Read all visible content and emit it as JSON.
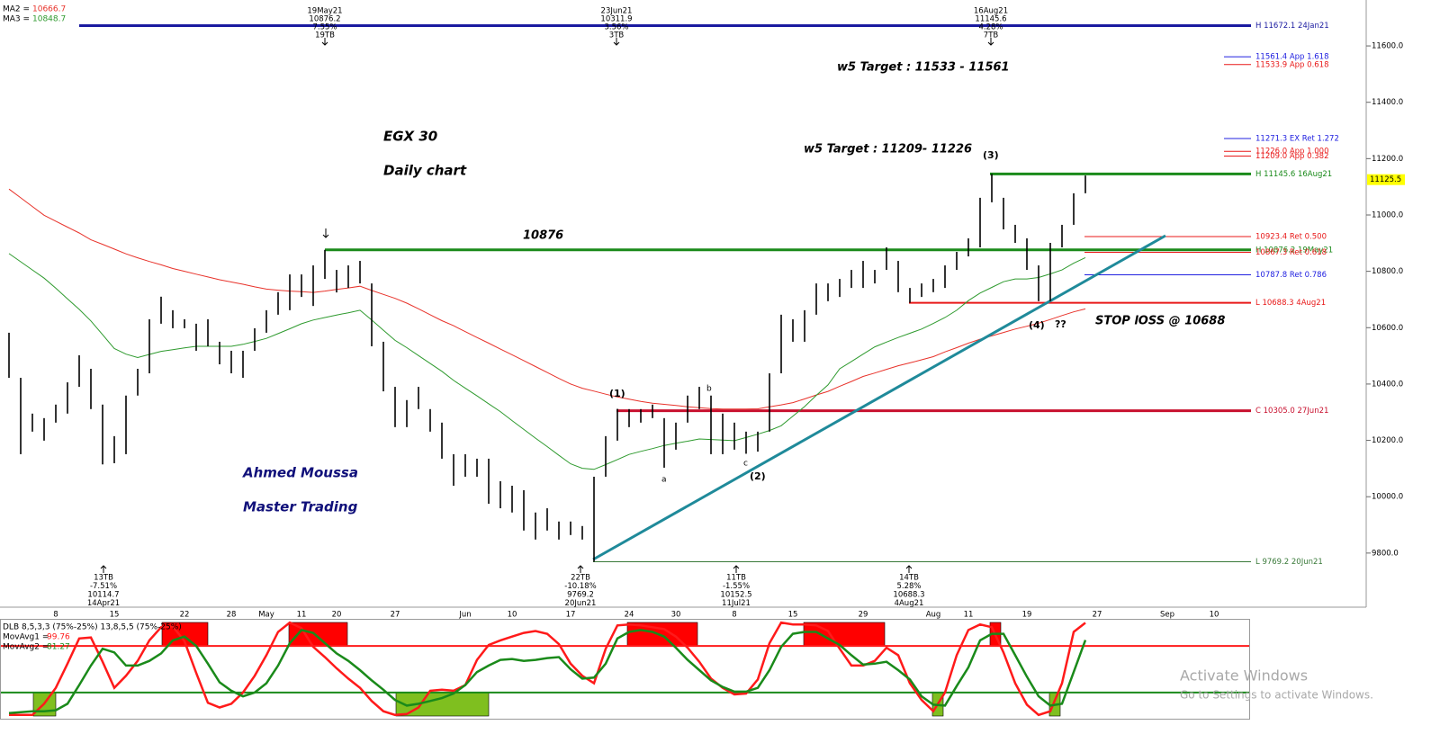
{
  "chart_data": {
    "type": "ohlc",
    "categories": [
      null,
      null,
      null,
      null,
      "8",
      null,
      null,
      null,
      null,
      "15",
      null,
      null,
      null,
      null,
      null,
      "22",
      null,
      null,
      null,
      "28",
      null,
      null,
      "May",
      null,
      null,
      "11",
      null,
      null,
      "20",
      null,
      null,
      null,
      null,
      "27",
      null,
      null,
      null,
      null,
      null,
      "Jun",
      null,
      null,
      null,
      "10",
      null,
      null,
      null,
      null,
      "17",
      null,
      null,
      null,
      null,
      "24",
      null,
      null,
      null,
      "30",
      null,
      null,
      null,
      null,
      "8",
      null,
      null,
      null,
      null,
      "15",
      null,
      null,
      null,
      null,
      null,
      "29",
      null,
      null,
      null,
      null,
      null,
      "Aug",
      null,
      null,
      "11",
      null,
      null,
      null,
      null,
      "19",
      null,
      null,
      null,
      null,
      null,
      "27",
      null,
      null,
      null,
      null,
      null,
      "Sep",
      null,
      null,
      null,
      "10",
      null
    ],
    "high": [
      10582,
      10422,
      10295,
      10279,
      10327,
      10406,
      10502,
      10454,
      10327,
      10215,
      10359,
      10454,
      10630,
      10710,
      10662,
      10630,
      10614,
      10630,
      10550,
      10518,
      10518,
      10598,
      10662,
      10726,
      10789,
      10789,
      10821,
      10876.2,
      10805,
      10821,
      10837,
      10757,
      10550,
      10390,
      10343,
      10390,
      10311,
      10263,
      10151,
      10151,
      10135,
      10135,
      10055,
      10039,
      10023,
      9944,
      9959,
      9912,
      9912,
      9896,
      10071,
      10215,
      10311.9,
      10311,
      10311,
      10327,
      10279,
      10263,
      10359,
      10390,
      10359,
      10295,
      10263,
      10231,
      10231,
      10438,
      10646,
      10630,
      10662,
      10757,
      10757,
      10773,
      10805,
      10837,
      10805,
      10885,
      10837,
      10741,
      10757,
      10773,
      10821,
      10869,
      10917,
      11061,
      11145.6,
      11061,
      10965,
      10917,
      10821,
      10901,
      10965,
      11077,
      11140,
      null,
      null,
      null,
      null,
      null,
      null,
      null,
      null,
      null,
      null,
      null,
      null
    ],
    "low": [
      10422,
      10151,
      10231,
      10199,
      10263,
      10295,
      10390,
      10311,
      10114.7,
      10119,
      10151,
      10359,
      10438,
      10614,
      10598,
      10598,
      10518,
      10534,
      10470,
      10438,
      10422,
      10518,
      10582,
      10646,
      10662,
      10709,
      10677,
      10773,
      10725,
      10741,
      10757,
      10534,
      10374,
      10247,
      10247,
      10311,
      10231,
      10135,
      10039,
      10071,
      10071,
      9975,
      9959,
      9944,
      9880,
      9848,
      9880,
      9848,
      9864,
      9848,
      9769.2,
      10071,
      10199,
      10247,
      10263,
      10279,
      10103,
      10167,
      10263,
      10311,
      10151,
      10151,
      10167,
      10152.5,
      10160,
      10231,
      10438,
      10550,
      10550,
      10646,
      10694,
      10709,
      10741,
      10741,
      10757,
      10805,
      10726,
      10688.3,
      10709,
      10726,
      10741,
      10805,
      10853,
      10885,
      11045,
      10949,
      10901,
      10805,
      10694,
      10694,
      10885,
      10965,
      11077,
      null,
      null,
      null,
      null,
      null,
      null,
      null,
      null,
      null,
      null,
      null,
      null
    ],
    "bar_color": "#000000",
    "ylim": [
      9608,
      11763
    ],
    "yticks": [
      {
        "value": 9800,
        "label": "9800.0"
      },
      {
        "value": 10000,
        "label": "10000.0"
      },
      {
        "value": 10200,
        "label": "10200.0"
      },
      {
        "value": 10400,
        "label": "10400.0"
      },
      {
        "value": 10600,
        "label": "10600.0"
      },
      {
        "value": 10800,
        "label": "10800.0"
      },
      {
        "value": 11000,
        "label": "11000.0"
      },
      {
        "value": 11200,
        "label": "11200.0"
      },
      {
        "value": 11400,
        "label": "11400.0"
      },
      {
        "value": 11600,
        "label": "11600.0"
      }
    ],
    "last_price": 11125.5,
    "last_price_color": "#ffff00",
    "moving_averages": [
      {
        "label": "MA2 =",
        "color": "#e8322a",
        "values": [
          11092,
          11061,
          11030,
          10999,
          10978,
          10957,
          10936,
          10912,
          10896,
          10879,
          10862,
          10848,
          10835,
          10823,
          10810,
          10800,
          10790,
          10780,
          10770,
          10762,
          10754,
          10745,
          10737,
          10733,
          10730,
          10728,
          10725,
          10730,
          10736,
          10741,
          10747,
          10732,
          10718,
          10704,
          10687,
          10667,
          10646,
          10625,
          10607,
          10586,
          10565,
          10545,
          10524,
          10504,
          10483,
          10462,
          10441,
          10420,
          10400,
          10385,
          10375,
          10364,
          10354,
          10346,
          10338,
          10332,
          10328,
          10324,
          10319,
          10316,
          10313,
          10311,
          10311,
          10311,
          10312,
          10319,
          10326,
          10334,
          10347,
          10361,
          10374,
          10392,
          10409,
          10427,
          10439,
          10452,
          10465,
          10475,
          10486,
          10497,
          10514,
          10529,
          10545,
          10559,
          10571,
          10583,
          10595,
          10605,
          10616,
          10629,
          10643,
          10656,
          10666.7,
          null,
          null,
          null,
          null,
          null,
          null,
          null,
          null,
          null,
          null,
          null,
          null
        ]
      },
      {
        "label": "MA3 =",
        "color": "#2e9a2e",
        "values": [
          10863,
          10834,
          10805,
          10776,
          10740,
          10702,
          10665,
          10624,
          10575,
          10526,
          10506,
          10494,
          10505,
          10516,
          10522,
          10528,
          10534,
          10534,
          10534,
          10534,
          10541,
          10551,
          10562,
          10579,
          10596,
          10614,
          10627,
          10636,
          10645,
          10653,
          10662,
          10627,
          10591,
          10555,
          10529,
          10501,
          10473,
          10445,
          10413,
          10385,
          10358,
          10330,
          10302,
          10270,
          10239,
          10208,
          10178,
          10147,
          10117,
          10101,
          10097,
          10114,
          10132,
          10150,
          10161,
          10171,
          10182,
          10190,
          10197,
          10205,
          10203,
          10201,
          10199,
          10210,
          10222,
          10235,
          10252,
          10286,
          10320,
          10360,
          10397,
          10454,
          10480,
          10506,
          10532,
          10549,
          10565,
          10580,
          10595,
          10615,
          10636,
          10662,
          10696,
          10723,
          10743,
          10763,
          10773,
          10773,
          10778,
          10791,
          10805,
          10829,
          10848.7,
          null,
          null,
          null,
          null,
          null,
          null,
          null,
          null,
          null,
          null,
          null,
          null
        ]
      }
    ],
    "levels": [
      {
        "value": 11672.1,
        "label": "H 11672.1 24Jan21",
        "color": "#1a1aa0"
      },
      {
        "value": 11561.4,
        "label": "11561.4 App 1.618",
        "color": "#2020e0"
      },
      {
        "value": 11533.9,
        "label": "11533.9 App 0.618",
        "color": "#e81818"
      },
      {
        "value": 11271.3,
        "label": "11271.3 EX Ret 1.272",
        "color": "#2020e0"
      },
      {
        "value": 11226.0,
        "label": "11226.0 App 1.000",
        "color": "#e81818"
      },
      {
        "value": 11209.0,
        "label": "11209.0 App 0.382",
        "color": "#e81818"
      },
      {
        "value": 11145.6,
        "label": "H 11145.6 16Aug21",
        "color": "#1a8a1a"
      },
      {
        "value": 10923.4,
        "label": "10923.4 Ret 0.500",
        "color": "#e81818"
      },
      {
        "value": 10876.2,
        "label": "H 10876.2 19May21",
        "color": "#1a8a1a"
      },
      {
        "value": 10867.3,
        "label": "10867.3 Ret 0.618",
        "color": "#e81818"
      },
      {
        "value": 10787.8,
        "label": "10787.8 Ret 0.786",
        "color": "#2020e0"
      },
      {
        "value": 10688.3,
        "label": "L 10688.3 4Aug21",
        "color": "#e81818"
      },
      {
        "value": 10305.0,
        "label": "C 10305.0 27Jun21",
        "color": "#c8102e"
      },
      {
        "value": 9769.2,
        "label": "L 9769.2 20Jun21",
        "color": "#3a7a3a"
      }
    ],
    "pivots_high": [
      {
        "lines": [
          "19May21",
          "10876.2",
          "7.55%",
          "19TB"
        ]
      },
      {
        "lines": [
          "23Jun21",
          "10311.9",
          "3.56%",
          "3TB"
        ]
      },
      {
        "lines": [
          "16Aug21",
          "11145.6",
          "4.28%",
          "7TB"
        ]
      }
    ],
    "pivots_low": [
      {
        "lines": [
          "13TB",
          "-7.51%",
          "10114.7",
          "14Apr21"
        ]
      },
      {
        "lines": [
          "22TB",
          "-10.18%",
          "9769.2",
          "20Jun21"
        ]
      },
      {
        "lines": [
          "11TB",
          "-1.55%",
          "10152.5",
          "11Jul21"
        ]
      },
      {
        "lines": [
          "14TB",
          "5.28%",
          "10688.3",
          "4Aug21"
        ]
      }
    ],
    "annotations": {
      "title": "EGX 30",
      "subtitle": "Daily chart",
      "author": "Ahmed Moussa",
      "brand": "Master Trading",
      "target_1": "w5 Target : 11533 - 11561",
      "target_2": "w5 Target : 11209- 11226",
      "level_label": "10876",
      "stop": "STOP lOSS @ 10688",
      "waves": [
        "(1)",
        "(2)",
        "(3)",
        "(4)",
        "??",
        "a",
        "b",
        "c"
      ]
    },
    "oscillator": {
      "title": "DLB 8,5,3,3 (75%-25%) 13,8,5,5 (75%-25%)",
      "ylim": [
        -4,
        104
      ],
      "levels": [
        {
          "value": 75,
          "color": "#ff1a1a"
        },
        {
          "value": 25,
          "color": "#1a8a1a"
        }
      ],
      "series": [
        {
          "label": "MovAvg1 =",
          "color": "#ff1a1a",
          "values": [
            1,
            1,
            1,
            13,
            30,
            56,
            83,
            84,
            58,
            30,
            43,
            59,
            81,
            95,
            96,
            80,
            46,
            14,
            9,
            13,
            25,
            43,
            65,
            90,
            100,
            94,
            74,
            63,
            51,
            40,
            30,
            16,
            5,
            1,
            2,
            9,
            27,
            28,
            27,
            33,
            60,
            76,
            81,
            85,
            89,
            91,
            88,
            77,
            56,
            43,
            35,
            72,
            97,
            98,
            97,
            95,
            93,
            85,
            73,
            58,
            40,
            30,
            23,
            24,
            39,
            78,
            100,
            98,
            98,
            97,
            91,
            72,
            54,
            54,
            59,
            73,
            65,
            35,
            17,
            5,
            25,
            65,
            92,
            98,
            95,
            68,
            35,
            12,
            1,
            5,
            35,
            90,
            99.76,
            null,
            null,
            null,
            null,
            null,
            null,
            null,
            null,
            null,
            null,
            null,
            null
          ]
        },
        {
          "label": "MovAvg2 =",
          "color": "#1a8a1a",
          "values": [
            3,
            4,
            5,
            5,
            6,
            13,
            33,
            54,
            72,
            68,
            54,
            54,
            59,
            67,
            81,
            85,
            75,
            56,
            36,
            27,
            21,
            25,
            35,
            54,
            78,
            92,
            89,
            78,
            67,
            59,
            49,
            38,
            28,
            17,
            11,
            13,
            16,
            19,
            24,
            33,
            47,
            54,
            60,
            61,
            59,
            60,
            62,
            63,
            50,
            40,
            41,
            56,
            83,
            90,
            92,
            90,
            85,
            73,
            60,
            49,
            38,
            31,
            26,
            26,
            30,
            49,
            74,
            88,
            90,
            90,
            83,
            76,
            65,
            55,
            56,
            58,
            49,
            39,
            21,
            12,
            11,
            32,
            52,
            81,
            88,
            88,
            65,
            42,
            21,
            11,
            13,
            47,
            81.27,
            null,
            null,
            null,
            null,
            null,
            null,
            null,
            null,
            null,
            null,
            null,
            null
          ]
        }
      ]
    }
  },
  "watermark": {
    "title": "Activate Windows",
    "subtitle": "Go to Settings to activate Windows."
  }
}
